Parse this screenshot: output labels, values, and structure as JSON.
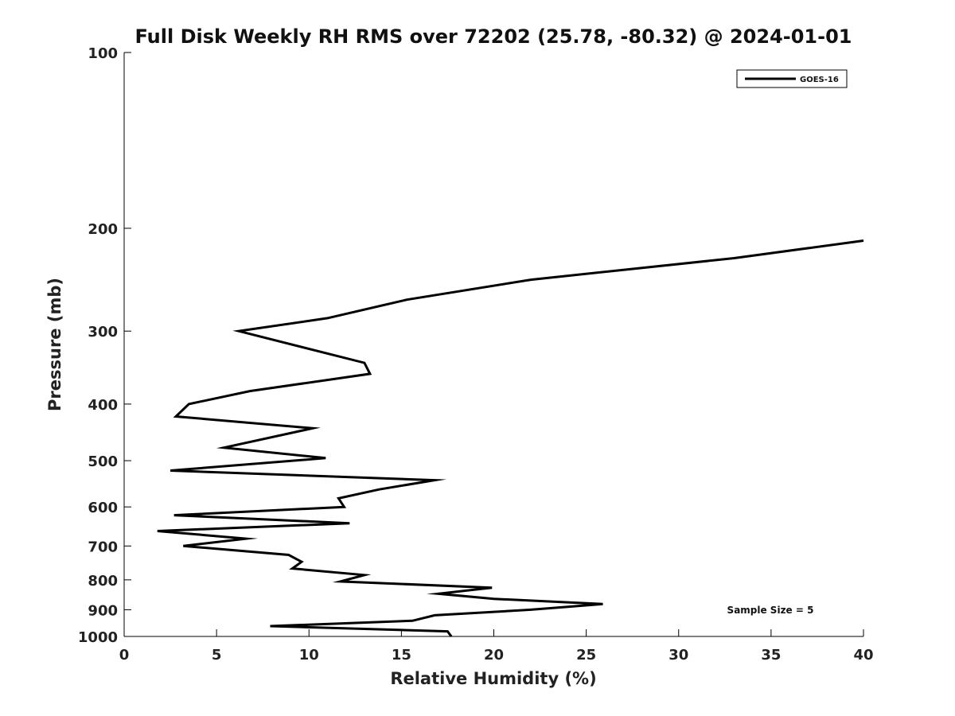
{
  "chart_data": {
    "type": "line",
    "title": "Full Disk Weekly RH RMS over 72202 (25.78, -80.32) @ 2024-01-01",
    "xlabel": "Relative Humidity (%)",
    "ylabel": "Pressure (mb)",
    "xlim": [
      0,
      40
    ],
    "ylim": [
      100,
      1000
    ],
    "y_scale": "log",
    "y_reversed": true,
    "xticks": [
      0,
      5,
      10,
      15,
      20,
      25,
      30,
      35,
      40
    ],
    "yticks": [
      100,
      200,
      300,
      400,
      500,
      600,
      700,
      800,
      900,
      1000
    ],
    "grid": false,
    "legend_position": "top-right",
    "series": [
      {
        "name": "GOES-16",
        "color": "#000000",
        "x": [
          40.0,
          33.0,
          22.0,
          15.3,
          11.0,
          6.2,
          13.0,
          13.3,
          6.8,
          3.5,
          2.8,
          10.2,
          5.4,
          10.9,
          2.5,
          16.8,
          13.8,
          11.6,
          11.9,
          2.7,
          12.2,
          1.8,
          6.6,
          3.2,
          8.9,
          9.6,
          9.1,
          13.0,
          11.7,
          19.9,
          17.0,
          20.0,
          25.9,
          22.0,
          16.8,
          15.6,
          7.9,
          17.5,
          17.7
        ],
        "y": [
          210,
          225,
          245,
          265,
          285,
          300,
          340,
          355,
          380,
          400,
          420,
          440,
          475,
          495,
          520,
          540,
          560,
          580,
          600,
          620,
          640,
          660,
          680,
          700,
          725,
          745,
          765,
          785,
          805,
          825,
          845,
          862,
          880,
          900,
          920,
          940,
          960,
          980,
          1000
        ]
      }
    ],
    "annotations": [
      "Sample Size = 5"
    ]
  }
}
